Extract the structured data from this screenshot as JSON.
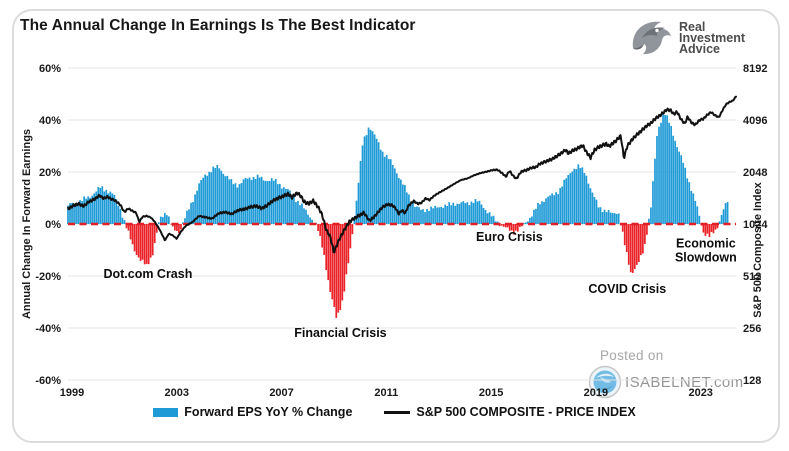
{
  "header": {
    "title": "The Annual Change In Earnings Is The Best Indicator",
    "logo": {
      "line1": "Real",
      "line2": "Investment",
      "line3": "Advice"
    }
  },
  "watermark": {
    "line1": "Posted on",
    "line2": "ISABELNET.com"
  },
  "legend": {
    "eps_label": "Forward EPS YoY % Change",
    "spx_label": "S&P 500 COMPOSITE - PRICE INDEX"
  },
  "chart_data": {
    "type": "combo",
    "title": "The Annual Change In Earnings Is The Best Indicator",
    "grid": true,
    "legend_position": "bottom",
    "colors": {
      "bar_positive": "#1e9ad6",
      "bar_negative": "#ea2127",
      "line": "#111111",
      "zero_line": "#e01f26",
      "gridline": "#e4e4e4",
      "tick_text": "#1a1a1a"
    },
    "x_axis": {
      "ticks": [
        1999,
        2003,
        2007,
        2011,
        2015,
        2019,
        2023
      ],
      "range": [
        1999,
        2024.5
      ]
    },
    "left_axis": {
      "label": "Annual Change In Forward Earnings",
      "ticks": [
        "60%",
        "40%",
        "20%",
        "0%",
        "-20%",
        "-40%",
        "-60%"
      ],
      "tick_values": [
        60,
        40,
        20,
        0,
        -20,
        -40,
        -60
      ],
      "range": [
        -60,
        60
      ]
    },
    "right_axis": {
      "label": "S&P 500  Composite Index",
      "ticks": [
        "8192",
        "4096",
        "2048",
        "1024",
        "512",
        "256",
        "128"
      ],
      "tick_values": [
        8192,
        4096,
        2048,
        1024,
        512,
        256,
        128
      ],
      "scale": "log2",
      "range": [
        128,
        8192
      ]
    },
    "series": [
      {
        "name": "Forward EPS YoY % Change",
        "type": "bar",
        "unit": "%",
        "points": [
          [
            1999.0,
            7
          ],
          [
            1999.25,
            8
          ],
          [
            1999.5,
            9
          ],
          [
            1999.75,
            10
          ],
          [
            2000.0,
            12
          ],
          [
            2000.25,
            14
          ],
          [
            2000.5,
            13
          ],
          [
            2000.75,
            11
          ],
          [
            2001.0,
            6
          ],
          [
            2001.25,
            -2
          ],
          [
            2001.5,
            -9
          ],
          [
            2001.75,
            -14
          ],
          [
            2002.0,
            -16
          ],
          [
            2002.25,
            -11
          ],
          [
            2002.5,
            2
          ],
          [
            2002.75,
            5
          ],
          [
            2003.0,
            -2
          ],
          [
            2003.25,
            -3
          ],
          [
            2003.5,
            3
          ],
          [
            2003.75,
            9
          ],
          [
            2004.0,
            15
          ],
          [
            2004.25,
            19
          ],
          [
            2004.5,
            21
          ],
          [
            2004.75,
            22
          ],
          [
            2005.0,
            19
          ],
          [
            2005.25,
            16
          ],
          [
            2005.5,
            15
          ],
          [
            2005.75,
            17
          ],
          [
            2006.0,
            18
          ],
          [
            2006.25,
            18
          ],
          [
            2006.5,
            17
          ],
          [
            2006.75,
            17
          ],
          [
            2007.0,
            16
          ],
          [
            2007.25,
            14
          ],
          [
            2007.5,
            12
          ],
          [
            2007.75,
            9
          ],
          [
            2008.0,
            6
          ],
          [
            2008.25,
            3
          ],
          [
            2008.5,
            -1
          ],
          [
            2008.75,
            -10
          ],
          [
            2009.0,
            -26
          ],
          [
            2009.25,
            -36
          ],
          [
            2009.5,
            -29
          ],
          [
            2009.75,
            -12
          ],
          [
            2010.0,
            8
          ],
          [
            2010.25,
            31
          ],
          [
            2010.5,
            38
          ],
          [
            2010.75,
            33
          ],
          [
            2011.0,
            28
          ],
          [
            2011.25,
            25
          ],
          [
            2011.5,
            21
          ],
          [
            2011.75,
            16
          ],
          [
            2012.0,
            11
          ],
          [
            2012.25,
            7
          ],
          [
            2012.5,
            5
          ],
          [
            2012.75,
            6
          ],
          [
            2013.0,
            6
          ],
          [
            2013.25,
            7
          ],
          [
            2013.5,
            7
          ],
          [
            2013.75,
            8
          ],
          [
            2014.0,
            8
          ],
          [
            2014.25,
            8
          ],
          [
            2014.5,
            9
          ],
          [
            2014.75,
            8
          ],
          [
            2015.0,
            5
          ],
          [
            2015.25,
            2
          ],
          [
            2015.5,
            0
          ],
          [
            2015.75,
            -2
          ],
          [
            2016.0,
            -3
          ],
          [
            2016.25,
            -2
          ],
          [
            2016.5,
            1
          ],
          [
            2016.75,
            4
          ],
          [
            2017.0,
            8
          ],
          [
            2017.25,
            10
          ],
          [
            2017.5,
            11
          ],
          [
            2017.75,
            13
          ],
          [
            2018.0,
            17
          ],
          [
            2018.25,
            21
          ],
          [
            2018.5,
            22
          ],
          [
            2018.75,
            20
          ],
          [
            2019.0,
            12
          ],
          [
            2019.25,
            7
          ],
          [
            2019.5,
            5
          ],
          [
            2019.75,
            4
          ],
          [
            2020.0,
            5
          ],
          [
            2020.25,
            -8
          ],
          [
            2020.5,
            -19
          ],
          [
            2020.75,
            -16
          ],
          [
            2021.0,
            -9
          ],
          [
            2021.25,
            6
          ],
          [
            2021.5,
            36
          ],
          [
            2021.75,
            43
          ],
          [
            2022.0,
            38
          ],
          [
            2022.25,
            30
          ],
          [
            2022.5,
            23
          ],
          [
            2022.75,
            15
          ],
          [
            2023.0,
            7
          ],
          [
            2023.25,
            -3
          ],
          [
            2023.5,
            -5
          ],
          [
            2023.75,
            -2
          ],
          [
            2024.0,
            5
          ],
          [
            2024.25,
            10
          ]
        ]
      },
      {
        "name": "S&P 500 COMPOSITE - PRICE INDEX",
        "type": "line",
        "unit": "index",
        "points": [
          [
            1999.0,
            1250
          ],
          [
            1999.2,
            1310
          ],
          [
            1999.4,
            1340
          ],
          [
            1999.6,
            1300
          ],
          [
            1999.8,
            1380
          ],
          [
            2000.0,
            1420
          ],
          [
            2000.2,
            1500
          ],
          [
            2000.35,
            1440
          ],
          [
            2000.5,
            1470
          ],
          [
            2000.65,
            1430
          ],
          [
            2000.8,
            1400
          ],
          [
            2001.0,
            1320
          ],
          [
            2001.15,
            1200
          ],
          [
            2001.3,
            1260
          ],
          [
            2001.45,
            1220
          ],
          [
            2001.6,
            1190
          ],
          [
            2001.72,
            1050
          ],
          [
            2001.85,
            1130
          ],
          [
            2002.0,
            1140
          ],
          [
            2002.15,
            1120
          ],
          [
            2002.3,
            1060
          ],
          [
            2002.5,
            950
          ],
          [
            2002.7,
            820
          ],
          [
            2002.85,
            900
          ],
          [
            2003.0,
            880
          ],
          [
            2003.15,
            840
          ],
          [
            2003.3,
            920
          ],
          [
            2003.5,
            1000
          ],
          [
            2003.75,
            1050
          ],
          [
            2004.0,
            1140
          ],
          [
            2004.25,
            1120
          ],
          [
            2004.5,
            1100
          ],
          [
            2004.75,
            1180
          ],
          [
            2005.0,
            1200
          ],
          [
            2005.25,
            1170
          ],
          [
            2005.5,
            1230
          ],
          [
            2005.75,
            1250
          ],
          [
            2006.0,
            1290
          ],
          [
            2006.2,
            1300
          ],
          [
            2006.4,
            1260
          ],
          [
            2006.6,
            1310
          ],
          [
            2006.8,
            1390
          ],
          [
            2007.0,
            1440
          ],
          [
            2007.2,
            1480
          ],
          [
            2007.4,
            1530
          ],
          [
            2007.55,
            1460
          ],
          [
            2007.75,
            1550
          ],
          [
            2007.9,
            1480
          ],
          [
            2008.0,
            1380
          ],
          [
            2008.2,
            1340
          ],
          [
            2008.35,
            1400
          ],
          [
            2008.55,
            1280
          ],
          [
            2008.7,
            1160
          ],
          [
            2008.85,
            950
          ],
          [
            2009.0,
            870
          ],
          [
            2009.15,
            700
          ],
          [
            2009.3,
            800
          ],
          [
            2009.5,
            920
          ],
          [
            2009.75,
            1060
          ],
          [
            2010.0,
            1120
          ],
          [
            2010.3,
            1190
          ],
          [
            2010.5,
            1070
          ],
          [
            2010.65,
            1110
          ],
          [
            2010.8,
            1180
          ],
          [
            2011.0,
            1280
          ],
          [
            2011.2,
            1330
          ],
          [
            2011.35,
            1320
          ],
          [
            2011.5,
            1270
          ],
          [
            2011.62,
            1170
          ],
          [
            2011.75,
            1230
          ],
          [
            2011.87,
            1180
          ],
          [
            2012.0,
            1310
          ],
          [
            2012.2,
            1390
          ],
          [
            2012.35,
            1340
          ],
          [
            2012.5,
            1360
          ],
          [
            2012.65,
            1440
          ],
          [
            2012.8,
            1410
          ],
          [
            2013.0,
            1500
          ],
          [
            2013.25,
            1580
          ],
          [
            2013.5,
            1660
          ],
          [
            2013.75,
            1750
          ],
          [
            2014.0,
            1840
          ],
          [
            2014.25,
            1880
          ],
          [
            2014.5,
            1960
          ],
          [
            2014.75,
            2020
          ],
          [
            2015.0,
            2060
          ],
          [
            2015.2,
            2100
          ],
          [
            2015.4,
            2110
          ],
          [
            2015.6,
            2000
          ],
          [
            2015.72,
            1920
          ],
          [
            2015.85,
            2080
          ],
          [
            2016.0,
            1940
          ],
          [
            2016.12,
            1870
          ],
          [
            2016.3,
            2060
          ],
          [
            2016.5,
            2100
          ],
          [
            2016.7,
            2170
          ],
          [
            2016.85,
            2180
          ],
          [
            2017.0,
            2280
          ],
          [
            2017.25,
            2360
          ],
          [
            2017.5,
            2440
          ],
          [
            2017.75,
            2580
          ],
          [
            2018.0,
            2750
          ],
          [
            2018.1,
            2620
          ],
          [
            2018.25,
            2720
          ],
          [
            2018.45,
            2800
          ],
          [
            2018.65,
            2920
          ],
          [
            2018.8,
            2650
          ],
          [
            2018.95,
            2480
          ],
          [
            2019.1,
            2750
          ],
          [
            2019.25,
            2850
          ],
          [
            2019.4,
            2920
          ],
          [
            2019.55,
            2980
          ],
          [
            2019.65,
            2880
          ],
          [
            2019.8,
            3000
          ],
          [
            2019.95,
            3140
          ],
          [
            2020.1,
            3320
          ],
          [
            2020.22,
            2450
          ],
          [
            2020.35,
            2900
          ],
          [
            2020.5,
            3100
          ],
          [
            2020.65,
            3300
          ],
          [
            2020.8,
            3450
          ],
          [
            2020.95,
            3620
          ],
          [
            2021.1,
            3800
          ],
          [
            2021.25,
            3920
          ],
          [
            2021.4,
            4150
          ],
          [
            2021.55,
            4300
          ],
          [
            2021.7,
            4480
          ],
          [
            2021.85,
            4700
          ],
          [
            2022.0,
            4680
          ],
          [
            2022.12,
            4420
          ],
          [
            2022.25,
            4570
          ],
          [
            2022.4,
            4130
          ],
          [
            2022.55,
            3900
          ],
          [
            2022.65,
            4280
          ],
          [
            2022.8,
            3950
          ],
          [
            2022.95,
            3840
          ],
          [
            2023.1,
            4090
          ],
          [
            2023.25,
            4150
          ],
          [
            2023.4,
            4380
          ],
          [
            2023.55,
            4550
          ],
          [
            2023.7,
            4350
          ],
          [
            2023.85,
            4250
          ],
          [
            2024.0,
            4700
          ],
          [
            2024.12,
            5050
          ],
          [
            2024.25,
            5200
          ],
          [
            2024.38,
            5300
          ],
          [
            2024.5,
            5600
          ]
        ]
      }
    ],
    "zero_line": {
      "value": 0,
      "style": "dashed",
      "color": "#e01f26"
    },
    "annotations": [
      {
        "lines": [
          "Dot.com Crash"
        ],
        "x": 2002.05,
        "y": -20.8
      },
      {
        "lines": [
          "Financial Crisis"
        ],
        "x": 2009.4,
        "y": -43.5
      },
      {
        "lines": [
          "Euro Crisis"
        ],
        "x": 2015.85,
        "y": -6.5
      },
      {
        "lines": [
          "COVID Crisis"
        ],
        "x": 2020.35,
        "y": -26.5
      },
      {
        "lines": [
          "Economic",
          "Slowdown"
        ],
        "x": 2023.35,
        "y": -9
      }
    ]
  }
}
